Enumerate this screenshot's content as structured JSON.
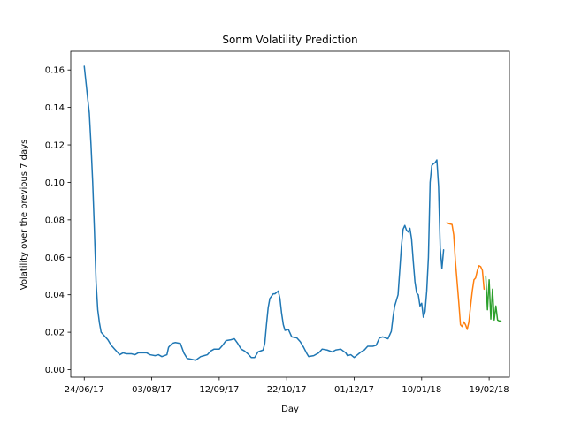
{
  "chart_data": {
    "type": "line",
    "title": "Sonm Volatility Prediction",
    "xlabel": "Day",
    "ylabel": "Volatility over the previous 7 days",
    "x_ticks": [
      "24/06/17",
      "03/08/17",
      "12/09/17",
      "22/10/17",
      "01/12/17",
      "10/01/18",
      "19/02/18"
    ],
    "y_ticks": [
      "0.00",
      "0.02",
      "0.04",
      "0.06",
      "0.08",
      "0.10",
      "0.12",
      "0.14",
      "0.16"
    ],
    "xlim": [
      "2017-06-16",
      "2018-03-03"
    ],
    "ylim": [
      -0.004,
      0.17
    ],
    "grid": false,
    "legend": "none",
    "series": [
      {
        "color": "#1f77b4",
        "points": [
          [
            "2017-06-24",
            0.162
          ],
          [
            "2017-06-26",
            0.145
          ],
          [
            "2017-06-27",
            0.137
          ],
          [
            "2017-06-28",
            0.12
          ],
          [
            "2017-06-29",
            0.1
          ],
          [
            "2017-06-30",
            0.075
          ],
          [
            "2017-07-01",
            0.047
          ],
          [
            "2017-07-02",
            0.032
          ],
          [
            "2017-07-03",
            0.025
          ],
          [
            "2017-07-04",
            0.02
          ],
          [
            "2017-07-06",
            0.018
          ],
          [
            "2017-07-08",
            0.016
          ],
          [
            "2017-07-10",
            0.013
          ],
          [
            "2017-07-12",
            0.011
          ],
          [
            "2017-07-14",
            0.009
          ],
          [
            "2017-07-15",
            0.008
          ],
          [
            "2017-07-17",
            0.009
          ],
          [
            "2017-07-19",
            0.0085
          ],
          [
            "2017-07-22",
            0.0085
          ],
          [
            "2017-07-24",
            0.008
          ],
          [
            "2017-07-26",
            0.009
          ],
          [
            "2017-07-28",
            0.009
          ],
          [
            "2017-07-31",
            0.009
          ],
          [
            "2017-08-02",
            0.008
          ],
          [
            "2017-08-05",
            0.0075
          ],
          [
            "2017-08-07",
            0.008
          ],
          [
            "2017-08-09",
            0.007
          ],
          [
            "2017-08-12",
            0.008
          ],
          [
            "2017-08-13",
            0.012
          ],
          [
            "2017-08-15",
            0.014
          ],
          [
            "2017-08-17",
            0.0145
          ],
          [
            "2017-08-20",
            0.014
          ],
          [
            "2017-08-22",
            0.009
          ],
          [
            "2017-08-24",
            0.006
          ],
          [
            "2017-08-27",
            0.0055
          ],
          [
            "2017-08-29",
            0.005
          ],
          [
            "2017-09-01",
            0.007
          ],
          [
            "2017-09-03",
            0.0075
          ],
          [
            "2017-09-05",
            0.008
          ],
          [
            "2017-09-07",
            0.01
          ],
          [
            "2017-09-09",
            0.011
          ],
          [
            "2017-09-12",
            0.011
          ],
          [
            "2017-09-14",
            0.013
          ],
          [
            "2017-09-16",
            0.0155
          ],
          [
            "2017-09-19",
            0.016
          ],
          [
            "2017-09-21",
            0.0165
          ],
          [
            "2017-09-23",
            0.014
          ],
          [
            "2017-09-25",
            0.011
          ],
          [
            "2017-09-27",
            0.01
          ],
          [
            "2017-09-29",
            0.0085
          ],
          [
            "2017-10-01",
            0.0065
          ],
          [
            "2017-10-03",
            0.0065
          ],
          [
            "2017-10-05",
            0.0095
          ],
          [
            "2017-10-08",
            0.0105
          ],
          [
            "2017-10-09",
            0.014
          ],
          [
            "2017-10-10",
            0.024
          ],
          [
            "2017-10-11",
            0.033
          ],
          [
            "2017-10-12",
            0.038
          ],
          [
            "2017-10-14",
            0.0405
          ],
          [
            "2017-10-15",
            0.0405
          ],
          [
            "2017-10-17",
            0.042
          ],
          [
            "2017-10-18",
            0.038
          ],
          [
            "2017-10-19",
            0.03
          ],
          [
            "2017-10-20",
            0.024
          ],
          [
            "2017-10-21",
            0.021
          ],
          [
            "2017-10-23",
            0.0215
          ],
          [
            "2017-10-25",
            0.0175
          ],
          [
            "2017-10-28",
            0.017
          ],
          [
            "2017-10-30",
            0.015
          ],
          [
            "2017-11-01",
            0.012
          ],
          [
            "2017-11-03",
            0.0085
          ],
          [
            "2017-11-04",
            0.007
          ],
          [
            "2017-11-07",
            0.0075
          ],
          [
            "2017-11-10",
            0.009
          ],
          [
            "2017-11-12",
            0.011
          ],
          [
            "2017-11-15",
            0.0105
          ],
          [
            "2017-11-18",
            0.0095
          ],
          [
            "2017-11-20",
            0.0105
          ],
          [
            "2017-11-23",
            0.011
          ],
          [
            "2017-11-26",
            0.009
          ],
          [
            "2017-11-27",
            0.0075
          ],
          [
            "2017-11-29",
            0.008
          ],
          [
            "2017-12-01",
            0.0065
          ],
          [
            "2017-12-03",
            0.008
          ],
          [
            "2017-12-05",
            0.0095
          ],
          [
            "2017-12-07",
            0.0105
          ],
          [
            "2017-12-09",
            0.0125
          ],
          [
            "2017-12-12",
            0.0125
          ],
          [
            "2017-12-14",
            0.013
          ],
          [
            "2017-12-16",
            0.017
          ],
          [
            "2017-12-18",
            0.0175
          ],
          [
            "2017-12-21",
            0.0165
          ],
          [
            "2017-12-23",
            0.0205
          ],
          [
            "2017-12-24",
            0.028
          ],
          [
            "2017-12-25",
            0.034
          ],
          [
            "2017-12-27",
            0.04
          ],
          [
            "2017-12-28",
            0.053
          ],
          [
            "2017-12-29",
            0.066
          ],
          [
            "2017-12-30",
            0.075
          ],
          [
            "2017-12-31",
            0.077
          ],
          [
            "2018-01-01",
            0.0745
          ],
          [
            "2018-01-02",
            0.0735
          ],
          [
            "2018-01-03",
            0.0755
          ],
          [
            "2018-01-04",
            0.07
          ],
          [
            "2018-01-05",
            0.058
          ],
          [
            "2018-01-06",
            0.047
          ],
          [
            "2018-01-07",
            0.041
          ],
          [
            "2018-01-08",
            0.04
          ],
          [
            "2018-01-09",
            0.034
          ],
          [
            "2018-01-10",
            0.0355
          ],
          [
            "2018-01-11",
            0.028
          ],
          [
            "2018-01-12",
            0.031
          ],
          [
            "2018-01-13",
            0.042
          ],
          [
            "2018-01-14",
            0.06
          ],
          [
            "2018-01-15",
            0.1
          ],
          [
            "2018-01-16",
            0.109
          ],
          [
            "2018-01-17",
            0.11
          ],
          [
            "2018-01-18",
            0.1105
          ],
          [
            "2018-01-19",
            0.112
          ],
          [
            "2018-01-20",
            0.098
          ],
          [
            "2018-01-21",
            0.065
          ],
          [
            "2018-01-22",
            0.054
          ],
          [
            "2018-01-23",
            0.064
          ]
        ]
      },
      {
        "color": "#ff7f0e",
        "points": [
          [
            "2018-01-25",
            0.0785
          ],
          [
            "2018-01-26",
            0.078
          ],
          [
            "2018-01-28",
            0.0775
          ],
          [
            "2018-01-29",
            0.072
          ],
          [
            "2018-01-30",
            0.058
          ],
          [
            "2018-02-01",
            0.036
          ],
          [
            "2018-02-02",
            0.024
          ],
          [
            "2018-02-03",
            0.023
          ],
          [
            "2018-02-04",
            0.0255
          ],
          [
            "2018-02-05",
            0.024
          ],
          [
            "2018-02-06",
            0.0215
          ],
          [
            "2018-02-07",
            0.0255
          ],
          [
            "2018-02-08",
            0.034
          ],
          [
            "2018-02-09",
            0.042
          ],
          [
            "2018-02-10",
            0.048
          ],
          [
            "2018-02-11",
            0.049
          ],
          [
            "2018-02-12",
            0.053
          ],
          [
            "2018-02-13",
            0.0555
          ],
          [
            "2018-02-14",
            0.055
          ],
          [
            "2018-02-15",
            0.053
          ],
          [
            "2018-02-16",
            0.043
          ]
        ]
      },
      {
        "color": "#2ca02c",
        "points": [
          [
            "2018-02-17",
            0.05
          ],
          [
            "2018-02-18",
            0.032
          ],
          [
            "2018-02-19",
            0.048
          ],
          [
            "2018-02-20",
            0.027
          ],
          [
            "2018-02-21",
            0.043
          ],
          [
            "2018-02-22",
            0.0265
          ],
          [
            "2018-02-23",
            0.034
          ],
          [
            "2018-02-24",
            0.0265
          ],
          [
            "2018-02-25",
            0.026
          ],
          [
            "2018-02-26",
            0.026
          ]
        ]
      }
    ]
  }
}
